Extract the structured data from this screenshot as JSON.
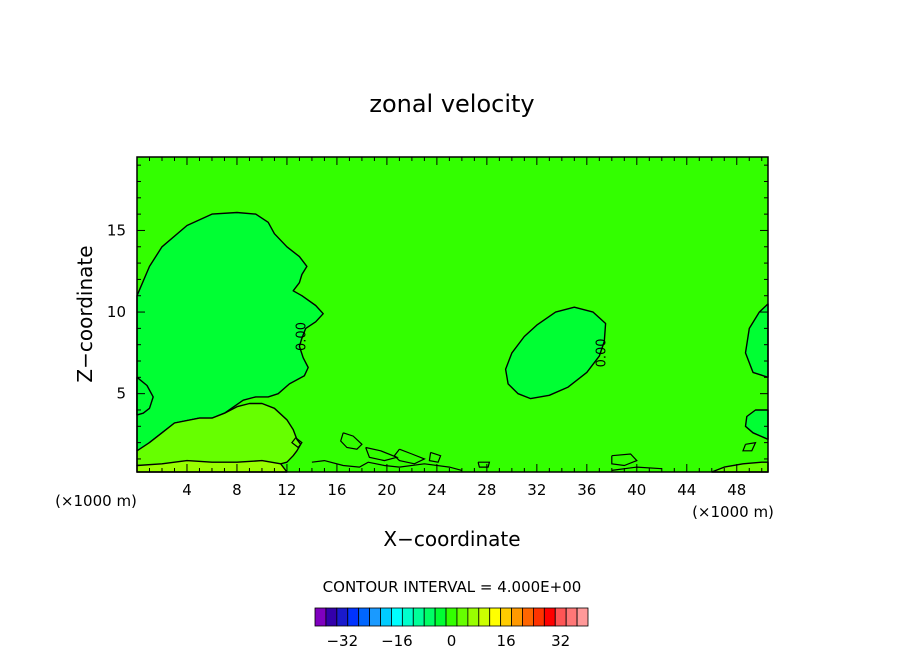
{
  "chart_data": {
    "type": "heatmap",
    "subtype": "filled-contour",
    "title": "zonal velocity",
    "xlabel": "X−coordinate",
    "ylabel": "Z−coordinate",
    "x_unit_left": "(×1000 m)",
    "x_unit_right": "(×1000 m)",
    "xlim": [
      0,
      50.5
    ],
    "ylim": [
      0.2,
      19.5
    ],
    "x_ticks": [
      4,
      8,
      12,
      16,
      20,
      24,
      28,
      32,
      36,
      40,
      44,
      48
    ],
    "x_tick_labels": [
      "4",
      "8",
      "12",
      "16",
      "20",
      "24",
      "28",
      "32",
      "36",
      "40",
      "44",
      "48"
    ],
    "y_ticks": [
      5,
      10,
      15
    ],
    "y_tick_labels": [
      "5",
      "10",
      "15"
    ],
    "contour_interval_text": "CONTOUR INTERVAL = 4.000E+00",
    "contour_labels": [
      {
        "text": "0.00",
        "x": 13.5,
        "y": 8.5
      },
      {
        "text": "0.00",
        "x": 37.5,
        "y": 7.5
      }
    ],
    "background_color": "#33ff00",
    "regions": [
      {
        "name": "upper-left-cell",
        "color": "#00ff33",
        "points": [
          [
            0,
            11
          ],
          [
            1,
            12.8
          ],
          [
            2,
            14
          ],
          [
            4,
            15.3
          ],
          [
            6,
            16
          ],
          [
            8,
            16.1
          ],
          [
            9.5,
            16
          ],
          [
            10.5,
            15.5
          ],
          [
            11,
            14.8
          ],
          [
            12,
            14
          ],
          [
            13,
            13.4
          ],
          [
            13.6,
            12.8
          ],
          [
            13.2,
            12.3
          ],
          [
            13,
            11.8
          ],
          [
            12.5,
            11.3
          ],
          [
            13.2,
            11
          ],
          [
            14.3,
            10.4
          ],
          [
            14.9,
            9.9
          ],
          [
            14.3,
            9.4
          ],
          [
            13.5,
            9
          ],
          [
            13.2,
            8.4
          ],
          [
            13,
            7.9
          ],
          [
            13.3,
            7.2
          ],
          [
            13.7,
            6.6
          ],
          [
            13.4,
            6.1
          ],
          [
            12.2,
            5.6
          ],
          [
            11.3,
            5
          ],
          [
            10.5,
            4.8
          ],
          [
            9.5,
            4.8
          ],
          [
            8.5,
            4.6
          ],
          [
            7,
            3.8
          ],
          [
            6,
            3.5
          ],
          [
            5,
            3.5
          ],
          [
            3,
            3.2
          ],
          [
            2,
            2.6
          ],
          [
            1,
            2
          ],
          [
            0.4,
            1.6
          ],
          [
            0,
            1.5
          ]
        ]
      },
      {
        "name": "mid-cell",
        "color": "#00ff33",
        "points": [
          [
            29.5,
            6.5
          ],
          [
            30,
            7.5
          ],
          [
            31,
            8.5
          ],
          [
            32,
            9.2
          ],
          [
            33.5,
            10
          ],
          [
            35,
            10.3
          ],
          [
            36.5,
            10
          ],
          [
            37.5,
            9.3
          ],
          [
            37.4,
            8.2
          ],
          [
            37,
            7.3
          ],
          [
            36,
            6.3
          ],
          [
            34.5,
            5.4
          ],
          [
            33,
            4.9
          ],
          [
            31.5,
            4.7
          ],
          [
            30.5,
            5
          ],
          [
            29.7,
            5.6
          ]
        ]
      },
      {
        "name": "left-edge-cell",
        "color": "#00ff33",
        "points": [
          [
            0,
            6
          ],
          [
            0.8,
            5.5
          ],
          [
            1.3,
            4.8
          ],
          [
            1,
            4.1
          ],
          [
            0.5,
            3.8
          ],
          [
            0,
            3.7
          ]
        ]
      },
      {
        "name": "right-edge-cell",
        "color": "#00ff33",
        "points": [
          [
            50.5,
            10.5
          ],
          [
            49.8,
            10
          ],
          [
            49,
            9
          ],
          [
            48.7,
            7.5
          ],
          [
            49.3,
            6.3
          ],
          [
            50.5,
            6
          ]
        ]
      },
      {
        "name": "lower-left-zone",
        "color": "#66ff00",
        "points": [
          [
            0,
            1.5
          ],
          [
            1,
            2
          ],
          [
            2,
            2.6
          ],
          [
            3,
            3.2
          ],
          [
            5,
            3.5
          ],
          [
            6,
            3.5
          ],
          [
            7,
            3.8
          ],
          [
            8,
            4.2
          ],
          [
            9,
            4.4
          ],
          [
            10,
            4.4
          ],
          [
            11,
            4.1
          ],
          [
            12,
            3.4
          ],
          [
            12.5,
            2.8
          ],
          [
            12.8,
            2.2
          ],
          [
            13.1,
            1.9
          ],
          [
            12.8,
            1.5
          ],
          [
            12.5,
            1.2
          ],
          [
            12,
            0.8
          ],
          [
            11,
            0.6
          ],
          [
            9,
            0.5
          ],
          [
            6,
            0.5
          ],
          [
            3,
            0.6
          ],
          [
            0,
            0.6
          ]
        ]
      },
      {
        "name": "bottom-left-strip",
        "color": "#99ff00",
        "points": [
          [
            0,
            0.6
          ],
          [
            2,
            0.7
          ],
          [
            4,
            0.9
          ],
          [
            6,
            0.8
          ],
          [
            8,
            0.8
          ],
          [
            10,
            0.9
          ],
          [
            11.5,
            0.7
          ],
          [
            12,
            0.2
          ],
          [
            0,
            0.2
          ]
        ]
      },
      {
        "name": "bottom-right-strip",
        "color": "#66ff00",
        "points": [
          [
            46,
            0.2
          ],
          [
            47,
            0.5
          ],
          [
            48.5,
            0.7
          ],
          [
            50,
            0.8
          ],
          [
            50.5,
            0.8
          ],
          [
            50.5,
            0.2
          ]
        ]
      },
      {
        "name": "right-lower-patch",
        "color": "#00ff33",
        "points": [
          [
            50.5,
            4
          ],
          [
            49.5,
            4
          ],
          [
            48.8,
            3.6
          ],
          [
            48.7,
            3
          ],
          [
            49.3,
            2.6
          ],
          [
            50.2,
            2.3
          ],
          [
            50.5,
            2.2
          ]
        ]
      }
    ],
    "lines": [
      {
        "name": "patch-1",
        "points": [
          [
            16.5,
            2.6
          ],
          [
            17.3,
            2.4
          ],
          [
            18,
            1.9
          ],
          [
            17.6,
            1.6
          ],
          [
            16.8,
            1.7
          ],
          [
            16.3,
            2.1
          ],
          [
            16.5,
            2.6
          ]
        ]
      },
      {
        "name": "patch-2",
        "points": [
          [
            18.3,
            1.7
          ],
          [
            19.5,
            1.5
          ],
          [
            20.8,
            1.1
          ],
          [
            19.8,
            0.9
          ],
          [
            18.6,
            1.1
          ],
          [
            18.3,
            1.7
          ]
        ]
      },
      {
        "name": "patch-3",
        "points": [
          [
            21,
            1.6
          ],
          [
            22,
            1.3
          ],
          [
            23,
            1.0
          ],
          [
            22.2,
            0.7
          ],
          [
            21,
            0.9
          ],
          [
            20.6,
            1.2
          ],
          [
            21,
            1.6
          ]
        ]
      },
      {
        "name": "patch-4",
        "points": [
          [
            23.5,
            1.4
          ],
          [
            24.3,
            1.2
          ],
          [
            24.1,
            0.8
          ],
          [
            23.4,
            0.9
          ],
          [
            23.5,
            1.4
          ]
        ]
      },
      {
        "name": "patch-5",
        "points": [
          [
            14,
            0.8
          ],
          [
            15,
            0.9
          ],
          [
            16.5,
            0.6
          ],
          [
            17.8,
            0.5
          ],
          [
            18.5,
            0.8
          ],
          [
            19.8,
            0.6
          ],
          [
            21,
            0.5
          ],
          [
            23,
            0.7
          ],
          [
            25,
            0.5
          ],
          [
            26,
            0.3
          ]
        ]
      },
      {
        "name": "patch-6",
        "points": [
          [
            27.3,
            0.8
          ],
          [
            28.2,
            0.8
          ],
          [
            28.1,
            0.5
          ],
          [
            27.4,
            0.5
          ],
          [
            27.3,
            0.8
          ]
        ]
      },
      {
        "name": "patch-7",
        "points": [
          [
            38,
            1.2
          ],
          [
            39.5,
            1.3
          ],
          [
            40,
            0.9
          ],
          [
            39,
            0.6
          ],
          [
            38,
            0.7
          ],
          [
            38,
            1.2
          ]
        ]
      },
      {
        "name": "patch-8",
        "points": [
          [
            38,
            0.3
          ],
          [
            40,
            0.5
          ],
          [
            42,
            0.4
          ]
        ]
      },
      {
        "name": "patch-9",
        "points": [
          [
            12.7,
            2.3
          ],
          [
            13.2,
            2.0
          ],
          [
            12.9,
            1.7
          ],
          [
            12.4,
            2.0
          ],
          [
            12.7,
            2.3
          ]
        ]
      },
      {
        "name": "patch-10",
        "points": [
          [
            48.7,
            1.9
          ],
          [
            49.5,
            2.0
          ],
          [
            49.2,
            1.5
          ],
          [
            48.5,
            1.5
          ],
          [
            48.7,
            1.9
          ]
        ]
      }
    ],
    "colorbar": {
      "tick_labels": [
        "−32",
        "−16",
        "0",
        "16",
        "32"
      ],
      "tick_values": [
        -32,
        -16,
        0,
        16,
        32
      ],
      "range": [
        -40,
        40
      ],
      "colors": [
        "#7f00bf",
        "#3300aa",
        "#1a1acc",
        "#0033ff",
        "#0066ff",
        "#1a9aff",
        "#00ccff",
        "#00ffff",
        "#00ffcc",
        "#00ff99",
        "#00ff66",
        "#00ff33",
        "#33ff00",
        "#66ff00",
        "#99ff00",
        "#ccff00",
        "#ffff00",
        "#ffcc00",
        "#ff9900",
        "#ff6600",
        "#ff3300",
        "#ff0000",
        "#ff5555",
        "#ff7777",
        "#ff9999"
      ]
    }
  }
}
